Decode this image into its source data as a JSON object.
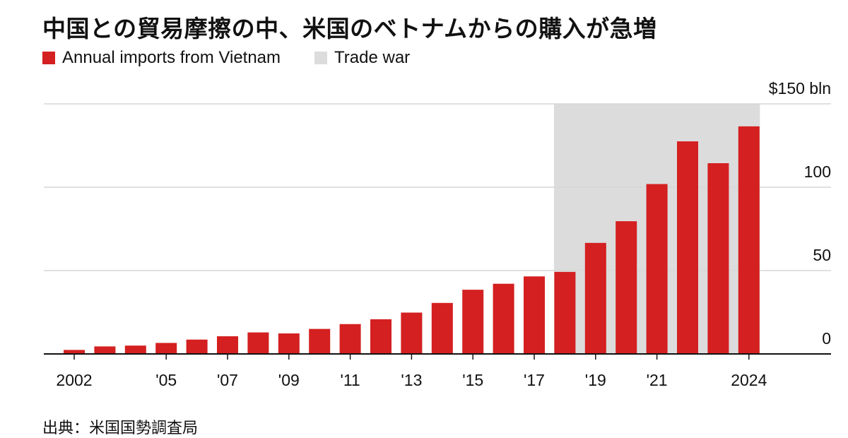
{
  "title": "中国との貿易摩擦の中、米国のベトナムからの購入が急増",
  "legend": [
    {
      "label": "Annual imports from Vietnam",
      "color": "#d42020"
    },
    {
      "label": "Trade war",
      "color": "#dcdcdc"
    }
  ],
  "source": "出典：米国国勢調査局",
  "chart_data": {
    "type": "bar",
    "categories": [
      "2002",
      "2003",
      "2004",
      "2005",
      "2006",
      "2007",
      "2008",
      "2009",
      "2010",
      "2011",
      "2012",
      "2013",
      "2014",
      "2015",
      "2016",
      "2017",
      "2018",
      "2019",
      "2020",
      "2021",
      "2022",
      "2023",
      "2024"
    ],
    "x_tick_labels": [
      "2002",
      "",
      "",
      "'05",
      "",
      "'07",
      "",
      "'09",
      "",
      "'11",
      "",
      "'13",
      "",
      "'15",
      "",
      "'17",
      "",
      "'19",
      "",
      "'21",
      "",
      "",
      "2024"
    ],
    "series": [
      {
        "name": "Annual imports from Vietnam",
        "values": [
          2.4,
          4.5,
          5.0,
          6.6,
          8.6,
          10.6,
          12.9,
          12.3,
          15.0,
          17.9,
          20.8,
          24.8,
          30.6,
          38.5,
          42.1,
          46.5,
          49.2,
          66.6,
          79.6,
          101.9,
          127.5,
          114.4,
          136.5
        ],
        "color": "#d42020"
      }
    ],
    "shaded_range": {
      "label": "Trade war",
      "from": "2018",
      "to": "2024",
      "color": "#dcdcdc"
    },
    "y_ticks": [
      0,
      50,
      100,
      150
    ],
    "y_tick_labels": [
      "0",
      "50",
      "100",
      "$150 bln"
    ],
    "ylim": [
      0,
      150
    ],
    "y_axis_position": "right",
    "grid": true
  }
}
